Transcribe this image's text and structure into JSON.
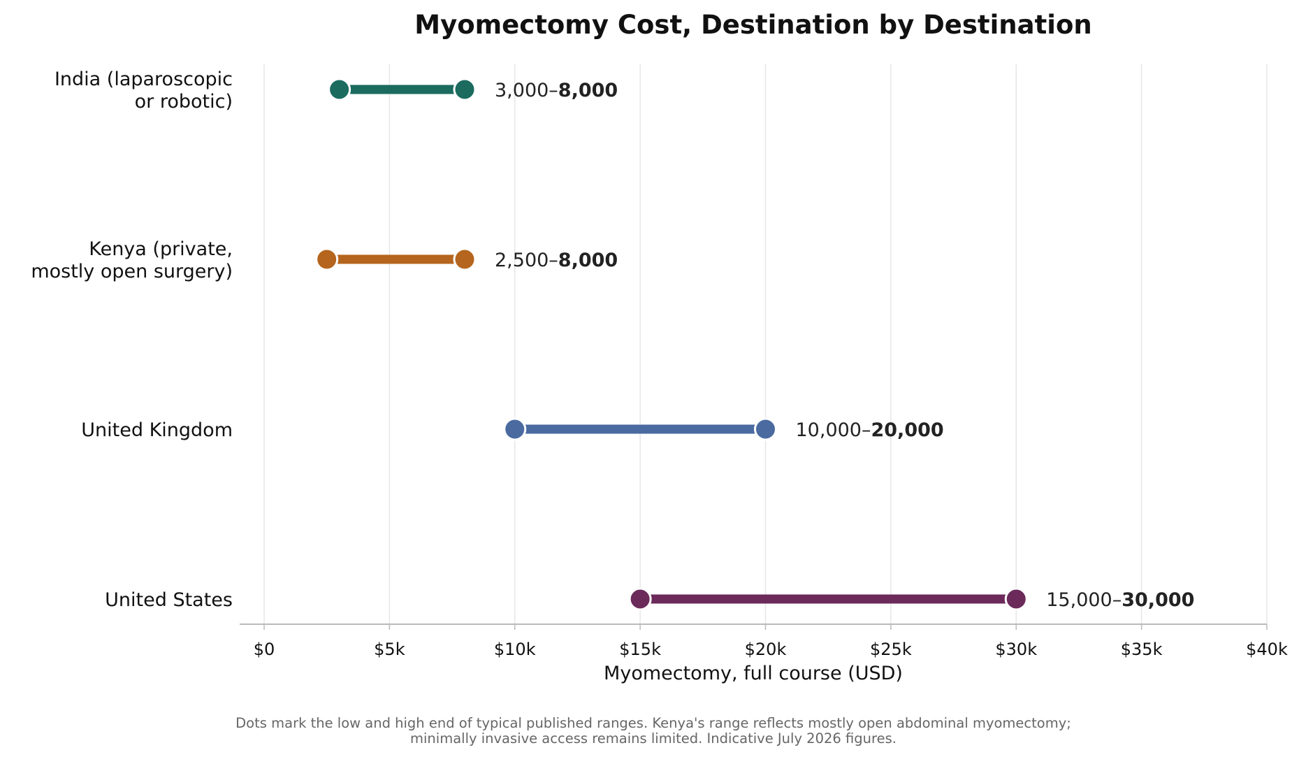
{
  "chart_data": {
    "type": "dumbbell",
    "title": "Myomectomy Cost, Destination by Destination",
    "xlabel": "Myomectomy, full course (USD)",
    "ylabel": "",
    "xlim": [
      0,
      40000
    ],
    "x_ticks": [
      0,
      5000,
      10000,
      15000,
      20000,
      25000,
      30000,
      35000,
      40000
    ],
    "x_tick_labels": [
      "$0",
      "$5k",
      "$10k",
      "$15k",
      "$20k",
      "$25k",
      "$30k",
      "$35k",
      "$40k"
    ],
    "grid": "vertical",
    "categories": [
      {
        "label_lines": [
          "India (laparoscopic",
          "or robotic)"
        ],
        "low": 3000,
        "high": 8000,
        "color": "#1b6b5f",
        "value_label_low": "3,000",
        "value_label_high": "8,000"
      },
      {
        "label_lines": [
          "Kenya (private,",
          "mostly open surgery)"
        ],
        "low": 2500,
        "high": 8000,
        "color": "#b5651d",
        "value_label_low": "2,500",
        "value_label_high": "8,000"
      },
      {
        "label_lines": [
          "United Kingdom"
        ],
        "low": 10000,
        "high": 20000,
        "color": "#4a6aa0",
        "value_label_low": "10,000",
        "value_label_high": "20,000"
      },
      {
        "label_lines": [
          "United States"
        ],
        "low": 15000,
        "high": 30000,
        "color": "#6b2a5a",
        "value_label_low": "15,000",
        "value_label_high": "30,000"
      }
    ],
    "value_label_separator": "–",
    "caption_lines": [
      "Dots mark the low and high end of typical published ranges. Kenya's range reflects mostly open abdominal myomectomy;",
      "minimally invasive access remains limited. Indicative July 2026 figures."
    ]
  },
  "colors": {
    "grid": "#e6e6e6",
    "axis": "#bbbbbb",
    "marker_edge": "#ffffff"
  }
}
